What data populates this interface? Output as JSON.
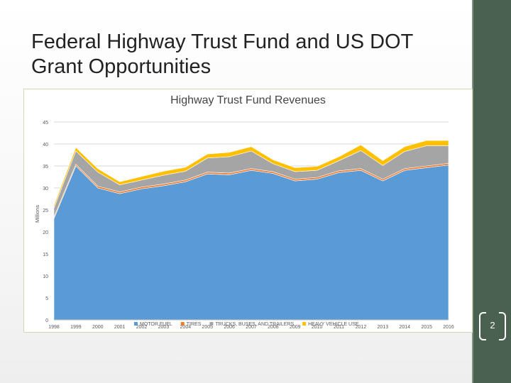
{
  "slide": {
    "title": "Federal Highway Trust Fund and US DOT Grant Opportunities",
    "page_number": "2",
    "colors": {
      "side_bar": "#4a6150",
      "frame": "#cfd8b6"
    }
  },
  "chart_data": {
    "type": "area",
    "stacked": true,
    "title": "Highway Trust Fund Revenues",
    "xlabel": "",
    "ylabel": "Millions",
    "ylim": [
      0,
      45
    ],
    "yticks": [
      0,
      5,
      10,
      15,
      20,
      25,
      30,
      35,
      40,
      45
    ],
    "grid": true,
    "legend_position": "bottom",
    "categories": [
      "1998",
      "1999",
      "2000",
      "2001",
      "2002",
      "2003",
      "2004",
      "2005",
      "2006",
      "2007",
      "2008",
      "2009",
      "2010",
      "2011",
      "2012",
      "2013",
      "2014",
      "2015",
      "2016"
    ],
    "series": [
      {
        "name": "MOTOR FUEL",
        "color": "#5b9bd5",
        "values": [
          23.0,
          35.0,
          30.0,
          28.7,
          29.8,
          30.5,
          31.4,
          33.2,
          33.0,
          34.0,
          33.3,
          31.6,
          32.0,
          33.5,
          34.0,
          31.6,
          34.0,
          34.6,
          35.2
        ]
      },
      {
        "name": "TIRES",
        "color": "#ed7d31",
        "values": [
          0.4,
          0.4,
          0.4,
          0.4,
          0.4,
          0.4,
          0.4,
          0.4,
          0.4,
          0.4,
          0.4,
          0.4,
          0.4,
          0.4,
          0.4,
          0.4,
          0.4,
          0.4,
          0.4
        ]
      },
      {
        "name": "TRUCKS, BUSES, AND TRAILERS",
        "color": "#a5a5a5",
        "values": [
          2.0,
          3.0,
          3.2,
          1.6,
          1.6,
          2.0,
          2.0,
          3.2,
          3.7,
          4.0,
          1.8,
          1.7,
          1.6,
          2.3,
          4.1,
          3.1,
          3.9,
          4.6,
          4.0
        ]
      },
      {
        "name": "HEAVY VEHICLE USE",
        "color": "#ffc000",
        "values": [
          0.6,
          0.8,
          0.8,
          0.7,
          0.8,
          0.9,
          0.9,
          0.9,
          1.0,
          1.0,
          0.9,
          0.9,
          0.9,
          0.9,
          1.3,
          1.1,
          1.1,
          1.2,
          1.2
        ]
      }
    ]
  }
}
